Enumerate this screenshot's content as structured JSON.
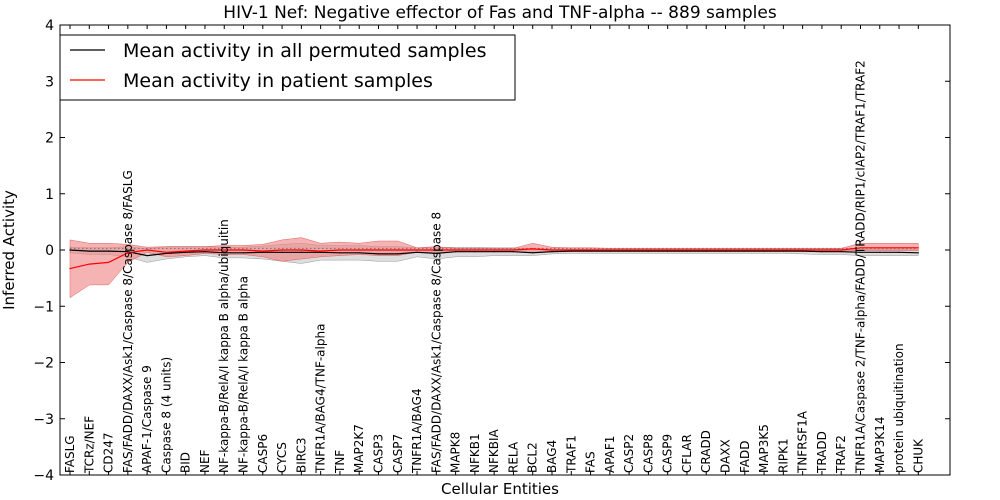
{
  "chart_data": {
    "type": "line",
    "title": "HIV-1 Nef: Negative effector of Fas and TNF-alpha -- 889 samples",
    "xlabel": "Cellular Entities",
    "ylabel": "Inferred Activity",
    "ylim": [
      -4,
      4
    ],
    "yticks": [
      -4,
      -3,
      -2,
      -1,
      0,
      1,
      2,
      3,
      4
    ],
    "ytick_labels": [
      "−4",
      "−3",
      "−2",
      "−1",
      "0",
      "1",
      "2",
      "3",
      "4"
    ],
    "legend_position": "top-left",
    "categories": [
      "FASLG",
      "TCRz/NEF",
      "CD247",
      "FAS/FADD/DAXX/Ask1/Caspase 8/Caspase 8/FASLG",
      "APAF-1/Caspase 9",
      "Caspase 8 (4 units)",
      "BID",
      "NEF",
      "NF-kappa-B/RelA/I kappa B alpha/ubiquitin",
      "NF-kappa-B/RelA/I kappa B alpha",
      "CASP6",
      "CYCS",
      "BIRC3",
      "TNFR1A/BAG4/TNF-alpha",
      "TNF",
      "MAP2K7",
      "CASP3",
      "CASP7",
      "TNFR1A/BAG4",
      "FAS/FADD/DAXX/Ask1/Caspase 8/Caspase 8",
      "MAPK8",
      "NFKB1",
      "NFKBIA",
      "RELA",
      "BCL2",
      "BAG4",
      "TRAF1",
      "FAS",
      "APAF1",
      "CASP2",
      "CASP8",
      "CASP9",
      "CFLAR",
      "CRADD",
      "DAXX",
      "FADD",
      "MAP3K5",
      "RIPK1",
      "TNFRSF1A",
      "TRADD",
      "TRAF2",
      "TNFR1A/Caspase 2/TNF-alpha/FADD/TRADD/RIP1/cIAP2/TRAF1/TRAF2",
      "MAP3K14",
      "protein ubiquitination",
      "CHUK"
    ],
    "series": [
      {
        "name": "Mean activity in all permuted samples",
        "color": "#000000",
        "band_color": "#bbbbbb",
        "values": [
          0.0,
          -0.02,
          -0.02,
          -0.03,
          -0.1,
          -0.06,
          -0.04,
          -0.03,
          -0.05,
          -0.05,
          -0.04,
          -0.04,
          -0.04,
          -0.04,
          -0.05,
          -0.05,
          -0.07,
          -0.07,
          -0.04,
          -0.06,
          -0.03,
          -0.03,
          -0.03,
          -0.03,
          -0.05,
          -0.03,
          -0.02,
          -0.02,
          -0.02,
          -0.02,
          -0.02,
          -0.02,
          -0.02,
          -0.02,
          -0.02,
          -0.02,
          -0.02,
          -0.02,
          -0.02,
          -0.03,
          -0.03,
          -0.04,
          -0.04,
          -0.04,
          -0.05
        ],
        "lower": [
          -0.05,
          -0.08,
          -0.08,
          -0.12,
          -0.22,
          -0.16,
          -0.12,
          -0.1,
          -0.14,
          -0.14,
          -0.16,
          -0.2,
          -0.24,
          -0.18,
          -0.18,
          -0.18,
          -0.2,
          -0.2,
          -0.12,
          -0.16,
          -0.12,
          -0.12,
          -0.1,
          -0.1,
          -0.1,
          -0.07,
          -0.06,
          -0.06,
          -0.06,
          -0.06,
          -0.06,
          -0.06,
          -0.06,
          -0.06,
          -0.06,
          -0.06,
          -0.06,
          -0.06,
          -0.07,
          -0.08,
          -0.08,
          -0.1,
          -0.1,
          -0.1,
          -0.1
        ],
        "upper": [
          0.05,
          0.04,
          0.04,
          0.06,
          0.02,
          0.06,
          0.06,
          0.06,
          0.05,
          0.05,
          0.07,
          0.1,
          0.12,
          0.08,
          0.08,
          0.08,
          0.06,
          0.06,
          0.04,
          0.04,
          0.05,
          0.05,
          0.04,
          0.04,
          0.02,
          0.02,
          0.02,
          0.02,
          0.02,
          0.02,
          0.02,
          0.02,
          0.02,
          0.02,
          0.02,
          0.02,
          0.02,
          0.02,
          0.02,
          0.02,
          0.02,
          0.01,
          0.01,
          0.01,
          0.01
        ]
      },
      {
        "name": "Mean activity in patient samples",
        "color": "#ff0000",
        "band_color": "#f08080",
        "values": [
          -0.33,
          -0.25,
          -0.22,
          -0.05,
          0.0,
          -0.04,
          -0.02,
          0.0,
          0.0,
          0.0,
          -0.02,
          0.0,
          0.0,
          -0.02,
          0.0,
          0.0,
          0.0,
          0.0,
          0.0,
          0.0,
          0.0,
          0.0,
          0.0,
          0.0,
          0.02,
          0.0,
          0.0,
          0.0,
          0.0,
          0.0,
          0.0,
          0.0,
          0.0,
          0.0,
          0.0,
          0.0,
          0.0,
          0.0,
          0.0,
          0.0,
          0.0,
          0.04,
          0.04,
          0.04,
          0.04
        ],
        "lower": [
          -0.85,
          -0.62,
          -0.62,
          -0.22,
          -0.04,
          -0.12,
          -0.1,
          -0.06,
          -0.08,
          -0.08,
          -0.12,
          -0.2,
          -0.16,
          -0.12,
          -0.1,
          -0.08,
          -0.1,
          -0.1,
          -0.04,
          -0.06,
          -0.03,
          -0.03,
          -0.03,
          -0.03,
          -0.04,
          -0.02,
          -0.02,
          -0.02,
          -0.02,
          -0.02,
          -0.02,
          -0.02,
          -0.02,
          -0.02,
          -0.02,
          -0.02,
          -0.02,
          -0.02,
          -0.02,
          -0.02,
          -0.02,
          -0.01,
          -0.01,
          -0.01,
          -0.01
        ],
        "upper": [
          0.18,
          0.12,
          0.12,
          0.1,
          0.05,
          0.06,
          0.06,
          0.06,
          0.08,
          0.08,
          0.1,
          0.18,
          0.22,
          0.12,
          0.14,
          0.12,
          0.16,
          0.16,
          0.04,
          0.06,
          0.03,
          0.03,
          0.03,
          0.03,
          0.12,
          0.05,
          0.04,
          0.04,
          0.03,
          0.03,
          0.03,
          0.03,
          0.03,
          0.03,
          0.03,
          0.03,
          0.03,
          0.03,
          0.03,
          0.03,
          0.03,
          0.12,
          0.12,
          0.12,
          0.12
        ]
      }
    ]
  }
}
